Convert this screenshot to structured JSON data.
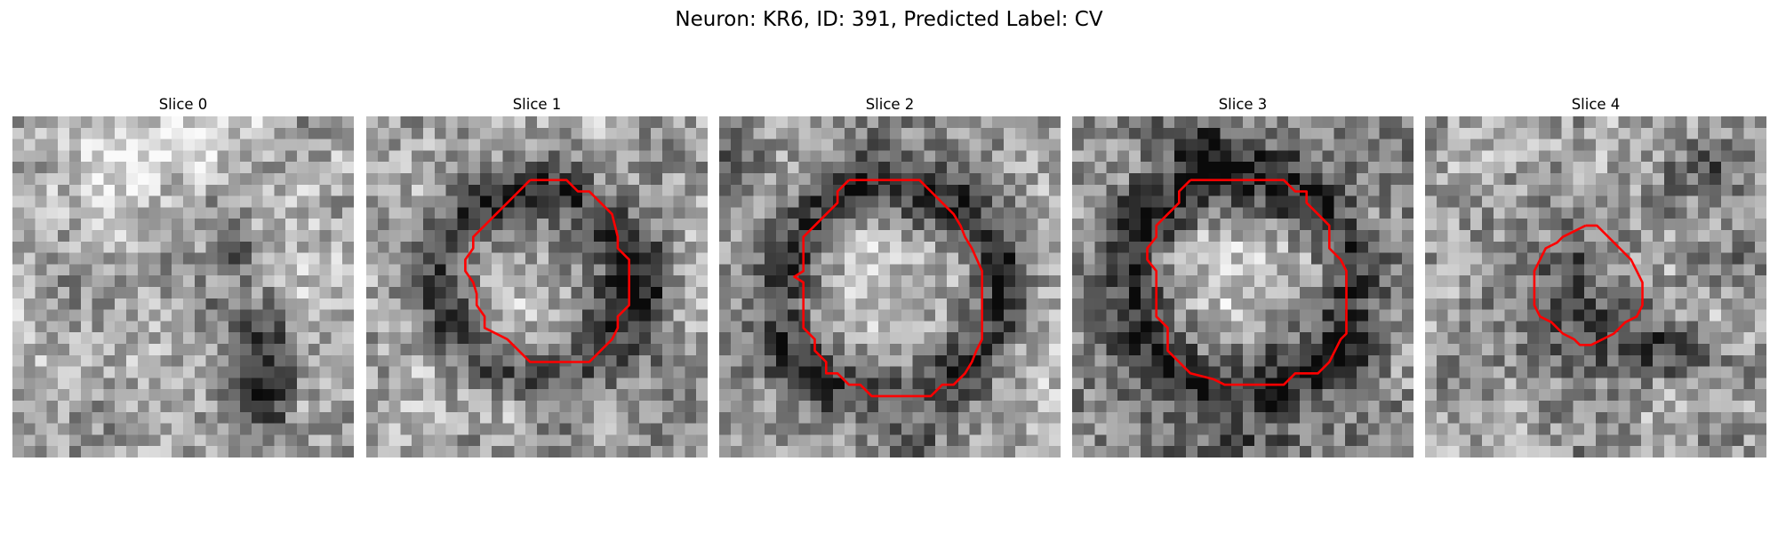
{
  "figure": {
    "title": "Neuron: KR6, ID: 391, Predicted Label: CV"
  },
  "slices": [
    {
      "title": "Slice 0",
      "has_contour": false
    },
    {
      "title": "Slice 1",
      "has_contour": true
    },
    {
      "title": "Slice 2",
      "has_contour": true
    },
    {
      "title": "Slice 3",
      "has_contour": true
    },
    {
      "title": "Slice 4",
      "has_contour": true
    }
  ],
  "colors": {
    "contour": "#ff0000",
    "background": "#ffffff"
  },
  "colormap": "grayscale"
}
